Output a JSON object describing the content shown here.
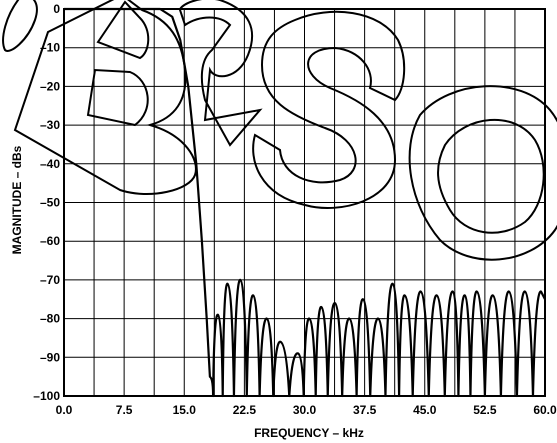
{
  "chart_data": {
    "type": "line",
    "title": "",
    "xlabel": "FREQUENCY – kHz",
    "ylabel": "MAGNITUDE – dBs",
    "xlim": [
      0.0,
      60.0
    ],
    "ylim": [
      -100,
      0
    ],
    "x_ticks": [
      "0.0",
      "7.5",
      "15.0",
      "22.5",
      "30.0",
      "37.5",
      "45.0",
      "52.5",
      "60.0"
    ],
    "y_ticks": [
      "0",
      "–10",
      "–20",
      "–30",
      "–40",
      "–50",
      "–60",
      "–70",
      "–80",
      "–90",
      "–100"
    ],
    "grid": true,
    "grid_x_step": 3.75,
    "grid_y_step": 10,
    "watermark": "OBSOLETE",
    "series": [
      {
        "name": "",
        "passband": [
          [
            0,
            0
          ],
          [
            12,
            0
          ],
          [
            13.5,
            -2
          ],
          [
            14.5,
            -8
          ],
          [
            15.5,
            -20
          ],
          [
            16.5,
            -40
          ],
          [
            17.2,
            -60
          ],
          [
            17.8,
            -80
          ],
          [
            18.2,
            -95
          ]
        ],
        "lobe_peaks": [
          [
            19.2,
            -79
          ],
          [
            20.4,
            -71
          ],
          [
            22.0,
            -70
          ],
          [
            23.6,
            -74
          ],
          [
            25.3,
            -80
          ],
          [
            27.0,
            -86
          ],
          [
            29.2,
            -89
          ],
          [
            30.6,
            -80
          ],
          [
            32.1,
            -77
          ],
          [
            33.8,
            -76
          ],
          [
            35.6,
            -80
          ],
          [
            37.3,
            -75
          ],
          [
            39.2,
            -80
          ],
          [
            41.0,
            -71
          ],
          [
            42.5,
            -74
          ],
          [
            44.5,
            -73
          ],
          [
            46.5,
            -74
          ],
          [
            48.5,
            -73
          ],
          [
            50.0,
            -74
          ],
          [
            51.5,
            -73
          ],
          [
            53.5,
            -74
          ],
          [
            55.5,
            -73
          ],
          [
            57.5,
            -73
          ],
          [
            59.5,
            -73
          ]
        ],
        "nulls": [
          18.6,
          19.8,
          21.2,
          22.8,
          24.4,
          26.1,
          28.1,
          29.9,
          31.4,
          32.9,
          34.7,
          36.5,
          38.2,
          40.1,
          41.8,
          43.5,
          45.5,
          47.5,
          49.2,
          50.7,
          52.5,
          54.5,
          56.5,
          58.5
        ]
      }
    ]
  }
}
